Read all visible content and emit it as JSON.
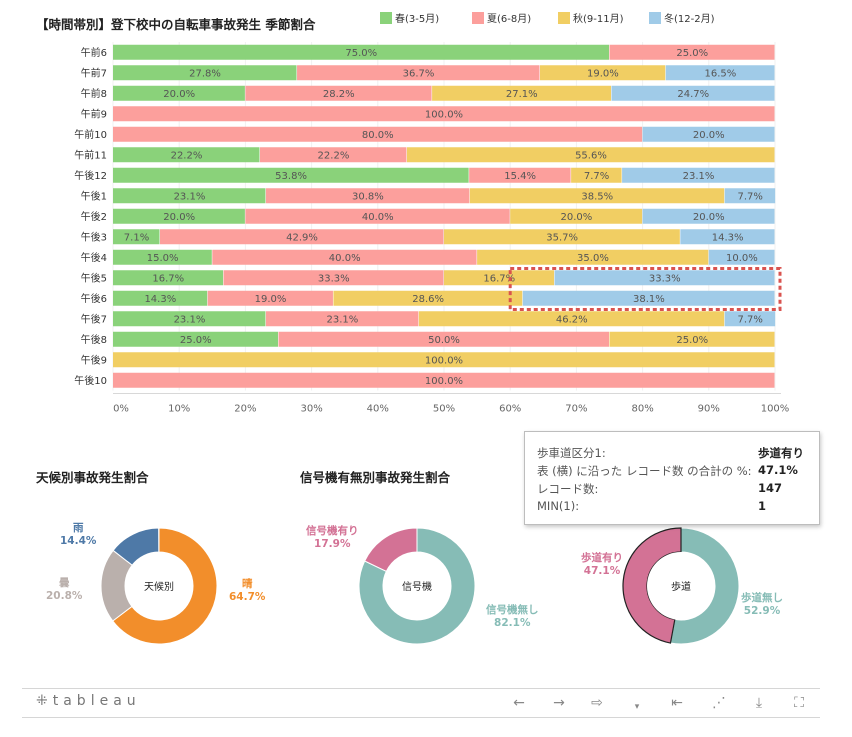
{
  "main_chart": {
    "title": "【時間帯別】登下校中の自転車事故発生 季節割合",
    "legend": [
      {
        "label": "春(3-5月)",
        "color": "#8ad27a"
      },
      {
        "label": "夏(6-8月)",
        "color": "#fc9f9c"
      },
      {
        "label": "秋(9-11月)",
        "color": "#f1ce63"
      },
      {
        "label": "冬(12-2月)",
        "color": "#a0cbe8"
      }
    ]
  },
  "chart_data": {
    "type": "bar",
    "orientation": "horizontal-stacked-100",
    "title": "【時間帯別】登下校中の自転車事故発生 季節割合",
    "categories": [
      "午前6",
      "午前7",
      "午前8",
      "午前9",
      "午前10",
      "午前11",
      "午後12",
      "午後1",
      "午後2",
      "午後3",
      "午後4",
      "午後5",
      "午後6",
      "午後7",
      "午後8",
      "午後9",
      "午後10"
    ],
    "series": [
      {
        "name": "春(3-5月)",
        "color": "#8ad27a",
        "values": [
          75.0,
          27.8,
          20.0,
          0,
          0,
          22.2,
          53.8,
          23.1,
          20.0,
          7.1,
          15.0,
          16.7,
          14.3,
          23.1,
          25.0,
          0,
          0
        ]
      },
      {
        "name": "夏(6-8月)",
        "color": "#fc9f9c",
        "values": [
          25.0,
          36.7,
          28.2,
          100.0,
          80.0,
          22.2,
          15.4,
          30.8,
          40.0,
          42.9,
          40.0,
          33.3,
          19.0,
          23.1,
          50.0,
          0,
          100.0
        ]
      },
      {
        "name": "秋(9-11月)",
        "color": "#f1ce63",
        "values": [
          0,
          19.0,
          27.1,
          0,
          0,
          55.6,
          7.7,
          38.5,
          20.0,
          35.7,
          35.0,
          16.7,
          28.6,
          46.2,
          25.0,
          100.0,
          0
        ]
      },
      {
        "name": "冬(12-2月)",
        "color": "#a0cbe8",
        "values": [
          0,
          16.5,
          24.7,
          0,
          20.0,
          0,
          23.1,
          7.7,
          20.0,
          14.3,
          10.0,
          33.3,
          38.1,
          7.7,
          0,
          0,
          0
        ]
      }
    ],
    "labels": [
      [
        "75.0%",
        "25.0%",
        "",
        ""
      ],
      [
        "27.8%",
        "36.7%",
        "19.0%",
        "16.5%"
      ],
      [
        "20.0%",
        "28.2%",
        "27.1%",
        "24.7%"
      ],
      [
        "",
        "100.0%",
        "",
        ""
      ],
      [
        "",
        "80.0%",
        "",
        "20.0%"
      ],
      [
        "22.2%",
        "22.2%",
        "55.6%",
        ""
      ],
      [
        "53.8%",
        "15.4%",
        "7.7%",
        "23.1%"
      ],
      [
        "23.1%",
        "30.8%",
        "38.5%",
        "7.7%"
      ],
      [
        "20.0%",
        "40.0%",
        "20.0%",
        "20.0%"
      ],
      [
        "7.1%",
        "42.9%",
        "35.7%",
        "14.3%"
      ],
      [
        "15.0%",
        "40.0%",
        "35.0%",
        "10.0%"
      ],
      [
        "16.7%",
        "33.3%",
        "16.7%",
        "33.3%"
      ],
      [
        "14.3%",
        "19.0%",
        "28.6%",
        "38.1%"
      ],
      [
        "23.1%",
        "23.1%",
        "46.2%",
        "7.7%"
      ],
      [
        "25.0%",
        "50.0%",
        "25.0%",
        ""
      ],
      [
        "",
        "",
        "100.0%",
        ""
      ],
      [
        "",
        "100.0%",
        "",
        ""
      ]
    ],
    "x_ticks": [
      "0%",
      "10%",
      "20%",
      "30%",
      "40%",
      "50%",
      "60%",
      "70%",
      "80%",
      "90%",
      "100%"
    ],
    "xlim": [
      0,
      100
    ],
    "highlight_rows": [
      "午後5",
      "午後6"
    ],
    "highlight_from_value": 60
  },
  "weather_panel": {
    "title": "天候別事故発生割合",
    "center": "天候別",
    "slices": [
      {
        "label": "晴",
        "value": 64.7,
        "pct": "64.7%",
        "color": "#f28e2b"
      },
      {
        "label": "曇",
        "value": 20.8,
        "pct": "20.8%",
        "color": "#bab0ac"
      },
      {
        "label": "雨",
        "value": 14.4,
        "pct": "14.4%",
        "color": "#4e79a7"
      }
    ]
  },
  "signal_panel": {
    "title": "信号機有無別事故発生割合",
    "center": "信号機",
    "slices": [
      {
        "label": "信号機無し",
        "value": 82.1,
        "pct": "82.1%",
        "color": "#86bcb6"
      },
      {
        "label": "信号機有り",
        "value": 17.9,
        "pct": "17.9%",
        "color": "#d37295"
      }
    ]
  },
  "sidewalk_panel": {
    "center": "歩道",
    "slices": [
      {
        "label": "歩道無し",
        "value": 52.9,
        "pct": "52.9%",
        "color": "#86bcb6"
      },
      {
        "label": "歩道有り",
        "value": 47.1,
        "pct": "47.1%",
        "color": "#d37295"
      }
    ]
  },
  "tooltip": {
    "rows": [
      {
        "key": "歩車道区分1:",
        "value": "歩道有り"
      },
      {
        "key": "表 (横) に沿った レコード数 の合計の %:",
        "value": "47.1%"
      },
      {
        "key": "レコード数:",
        "value": "147"
      },
      {
        "key": "MIN(1):",
        "value": "1"
      }
    ]
  },
  "toolbar": {
    "logo": "tableau",
    "buttons": [
      {
        "name": "undo-button",
        "icon": "arrow-left-icon",
        "glyph": "←"
      },
      {
        "name": "redo-button",
        "icon": "arrow-right-icon",
        "glyph": "→"
      },
      {
        "name": "revert-button",
        "icon": "revert-icon",
        "glyph": "⇨"
      },
      {
        "name": "revert-dropdown-button",
        "icon": "caret-down-icon",
        "glyph": "▾"
      },
      {
        "name": "pause-button",
        "icon": "skip-to-start-icon",
        "glyph": "⇤"
      },
      {
        "name": "share-button",
        "icon": "share-icon",
        "glyph": "⋰"
      },
      {
        "name": "download-button",
        "icon": "download-icon",
        "glyph": "⤓"
      },
      {
        "name": "fullscreen-button",
        "icon": "fullscreen-icon",
        "glyph": "⛶"
      }
    ]
  }
}
